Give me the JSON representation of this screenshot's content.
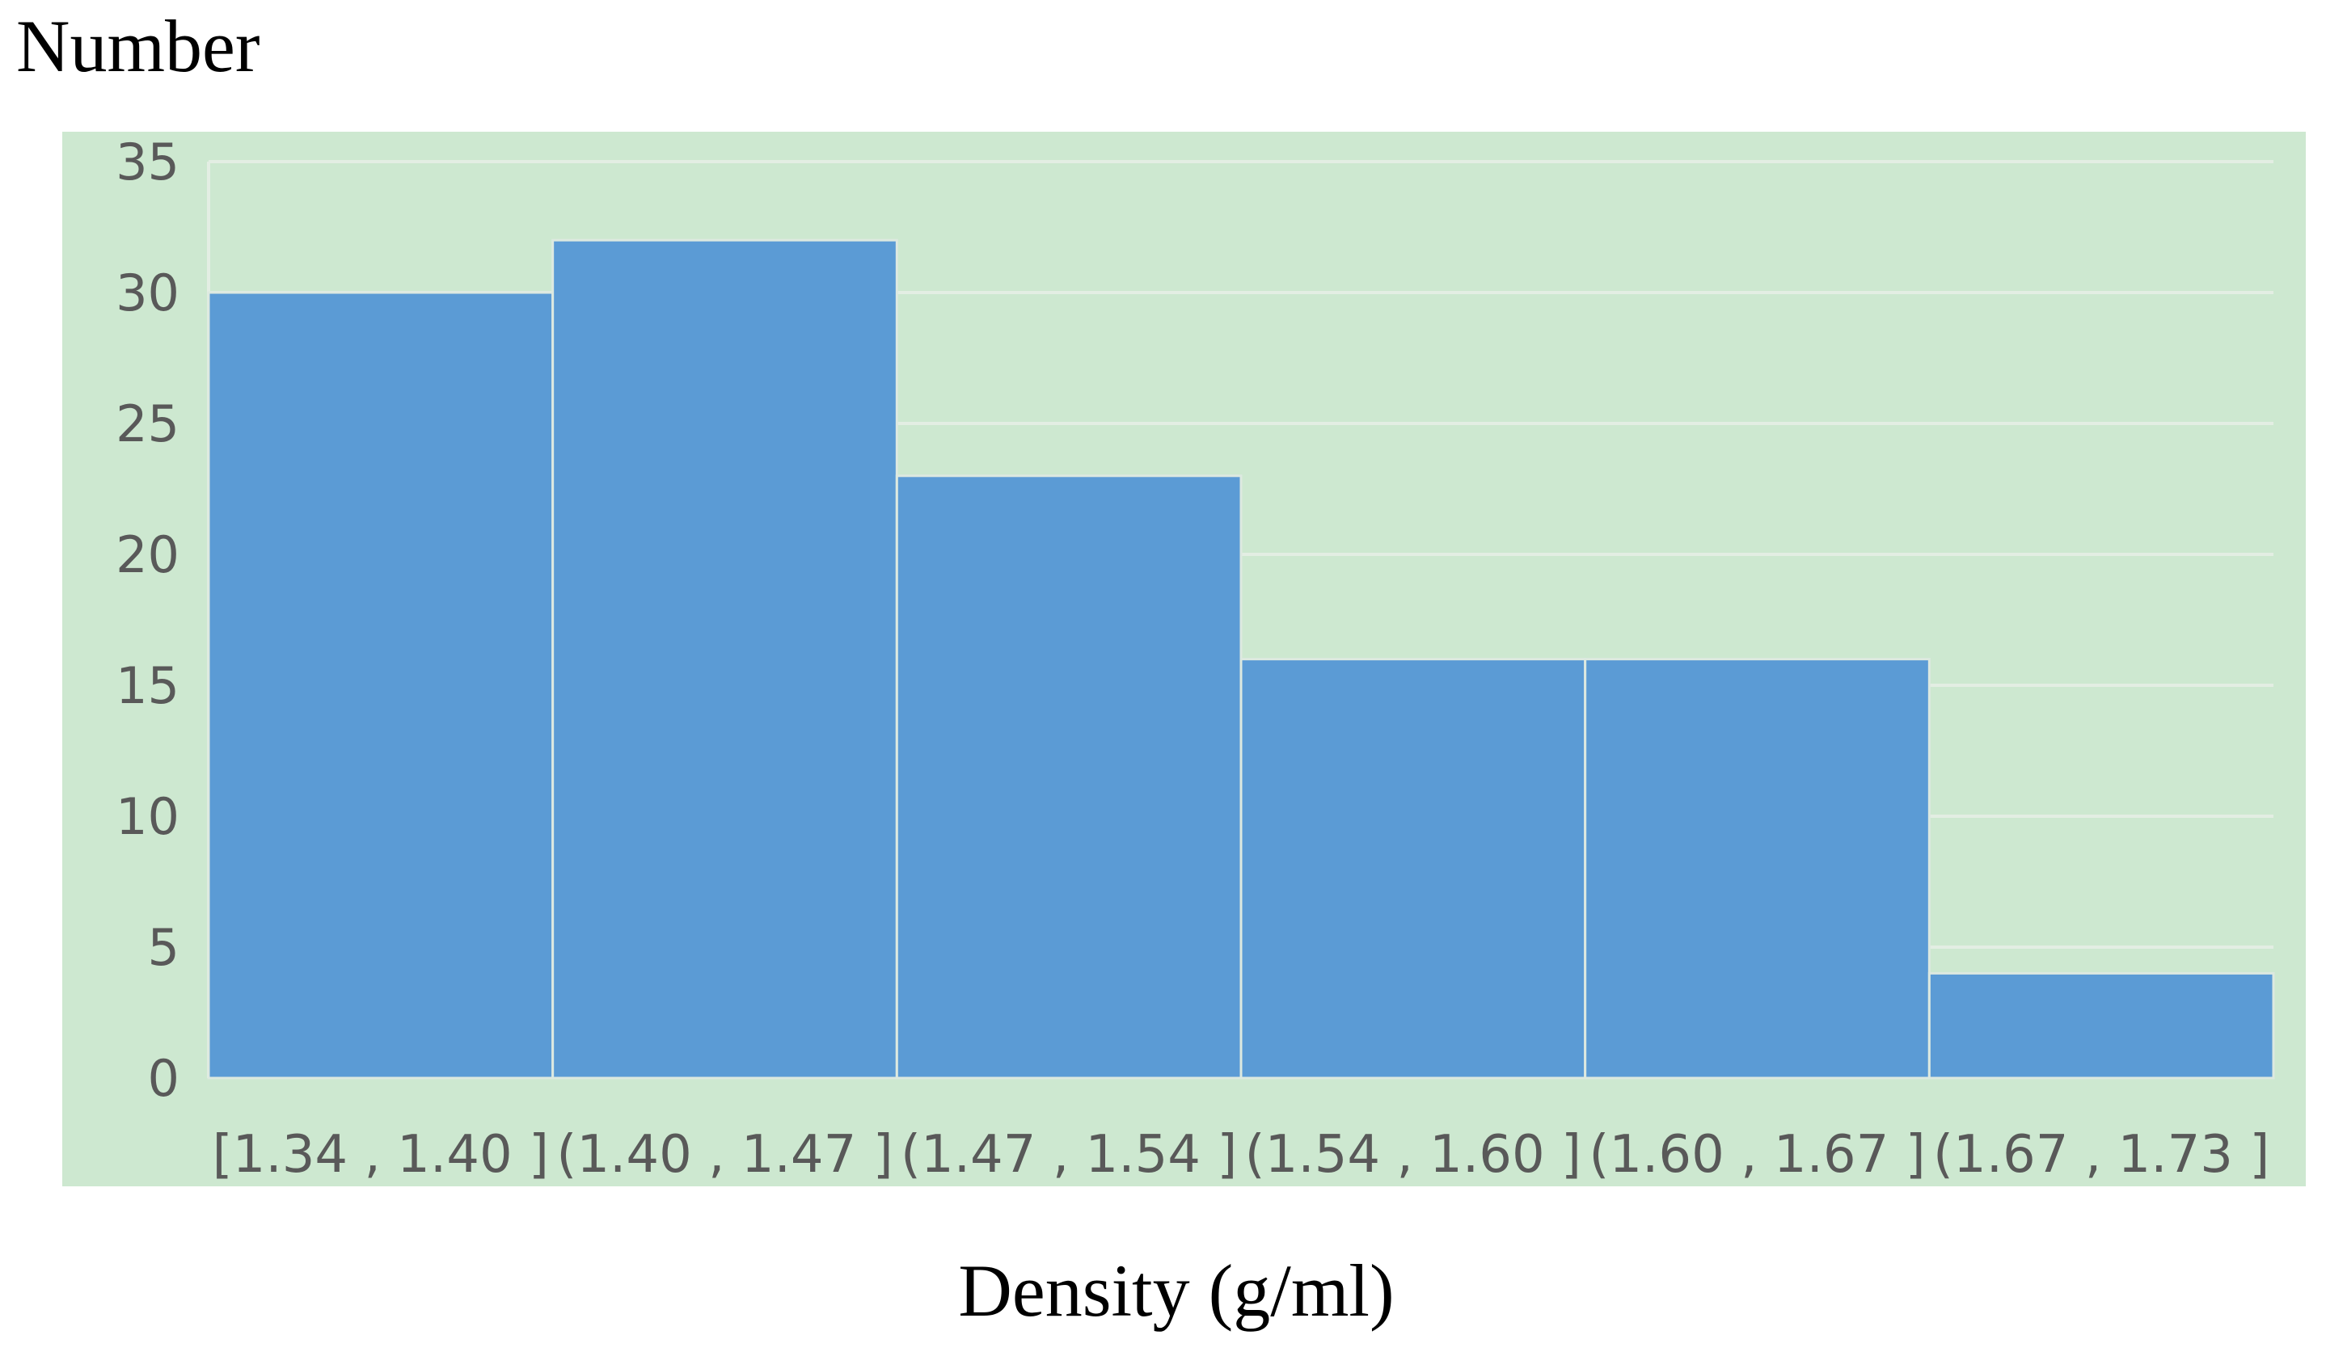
{
  "chart_data": {
    "type": "bar",
    "ylabel": "Number",
    "xlabel": "Density (g/ml)",
    "categories": [
      "[1.34 , 1.40 ]",
      "(1.40 , 1.47 ]",
      "(1.47 , 1.54 ]",
      "(1.54 , 1.60 ]",
      "(1.60 , 1.67 ]",
      "(1.67 , 1.73 ]"
    ],
    "values": [
      30,
      32,
      23,
      16,
      16,
      4
    ],
    "ylim": [
      0,
      35
    ],
    "yticks": [
      0,
      5,
      10,
      15,
      20,
      25,
      30,
      35
    ],
    "grid": true,
    "legend": "none",
    "colors": {
      "bar": "#5b9bd5",
      "bar_edge": "#dde9e0",
      "plot_background": "#cde8d0",
      "gridline": "#e3eee3",
      "tick_text": "#595959"
    }
  }
}
